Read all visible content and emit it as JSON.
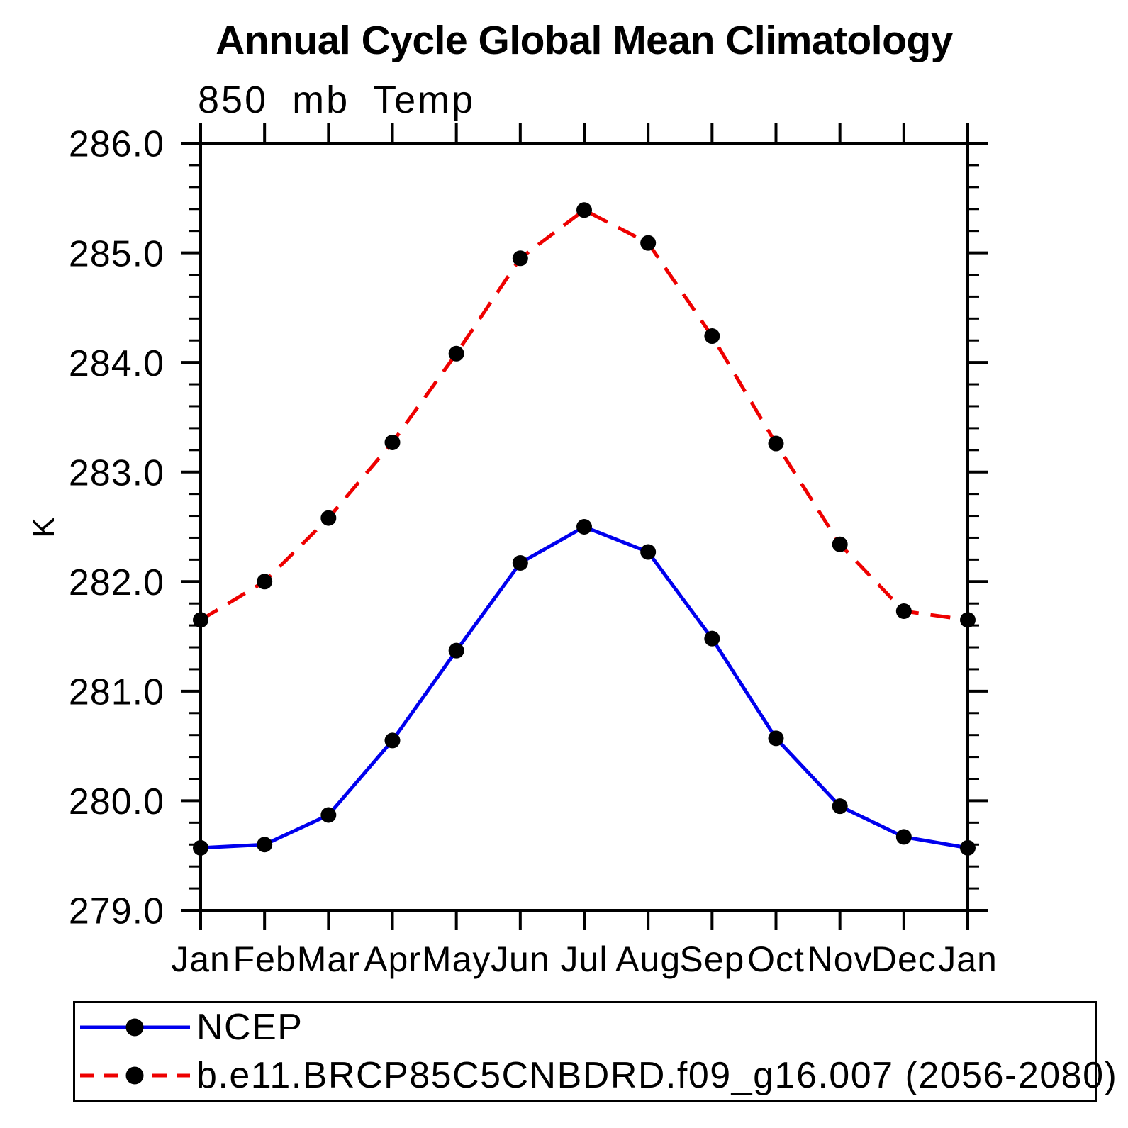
{
  "title": "Annual Cycle Global Mean Climatology",
  "subtitle": "850 mb Temp",
  "y_axis_title": "K",
  "chart_data": {
    "type": "line",
    "title": "Annual Cycle Global Mean Climatology",
    "subtitle": "850 mb Temp",
    "xlabel": "",
    "ylabel": "K",
    "categories": [
      "Jan",
      "Feb",
      "Mar",
      "Apr",
      "May",
      "Jun",
      "Jul",
      "Aug",
      "Sep",
      "Oct",
      "Nov",
      "Dec",
      "Jan"
    ],
    "ylim": [
      279.0,
      286.0
    ],
    "ytick_major_interval": 1.0,
    "ytick_minor_interval": 0.2,
    "ytick_labels": [
      "286.0",
      "285.0",
      "284.0",
      "283.0",
      "282.0",
      "281.0",
      "280.0",
      "279.0"
    ],
    "grid": false,
    "legend_position": "bottom",
    "series": [
      {
        "name": "NCEP",
        "color": "#0000ee",
        "line_style": "solid",
        "marker": "filled-circle",
        "marker_color": "#000000",
        "values": [
          279.57,
          279.6,
          279.87,
          280.55,
          281.37,
          282.17,
          282.5,
          282.27,
          281.48,
          280.57,
          279.95,
          279.67,
          279.57
        ]
      },
      {
        "name": "b.e11.BRCP85C5CNBDRD.f09_g16.007 (2056-2080)",
        "color": "#ee0000",
        "line_style": "dashed",
        "marker": "filled-circle",
        "marker_color": "#000000",
        "values": [
          281.65,
          282.0,
          282.58,
          283.27,
          284.08,
          284.95,
          285.39,
          285.09,
          284.24,
          283.26,
          282.34,
          281.73,
          281.65
        ]
      }
    ]
  },
  "legend": {
    "items": [
      {
        "label": "NCEP",
        "color": "#0000ee",
        "dash": "solid"
      },
      {
        "label": "b.e11.BRCP85C5CNBDRD.f09_g16.007 (2056-2080)",
        "color": "#ee0000",
        "dash": "dashed"
      }
    ]
  },
  "colors": {
    "axis": "#000000",
    "text": "#000000",
    "background": "#ffffff",
    "ncep_line": "#0000ee",
    "model_line": "#ee0000",
    "marker": "#000000"
  }
}
